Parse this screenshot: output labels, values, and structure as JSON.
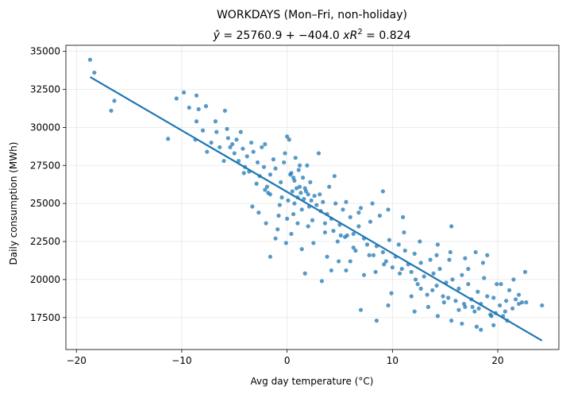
{
  "chart_data": {
    "type": "scatter",
    "title": "WORKDAYS (Mon–Fri, non-holiday)",
    "subtitle": "ŷ = 25760.9 + −404.0 x    R² = 0.824",
    "subtitle_parts": {
      "yhat": "ŷ",
      "eq_rest": " = 25760.9 + −404.0 ",
      "x_var": "x",
      "r": "R",
      "r_sup": "2",
      "r_value": " = 0.824"
    },
    "xlabel": "Avg day temperature (°C)",
    "ylabel": "Daily consumption (MWh)",
    "xlim": [
      -21,
      25.8
    ],
    "ylim": [
      15400,
      35400
    ],
    "xticks": [
      -20,
      -10,
      0,
      10,
      20
    ],
    "yticks": [
      17500,
      20000,
      22500,
      25000,
      27500,
      30000,
      32500,
      35000
    ],
    "xtick_labels": [
      "−20",
      "−10",
      "0",
      "10",
      "20"
    ],
    "ytick_labels": [
      "17500",
      "20000",
      "22500",
      "25000",
      "27500",
      "30000",
      "32500",
      "35000"
    ],
    "grid": true,
    "color": "#1f77b4",
    "fit": {
      "intercept": 25760.9,
      "slope": -404.0,
      "x_range": [
        -18.7,
        24.2
      ]
    },
    "points": [
      [
        -18.7,
        34450
      ],
      [
        -18.3,
        33600
      ],
      [
        -16.4,
        31750
      ],
      [
        -16.7,
        31100
      ],
      [
        -11.3,
        29250
      ],
      [
        -10.5,
        31900
      ],
      [
        -9.8,
        32300
      ],
      [
        -9.3,
        31300
      ],
      [
        -8.7,
        29200
      ],
      [
        -8.6,
        32100
      ],
      [
        -8.4,
        31200
      ],
      [
        -7.7,
        31400
      ],
      [
        -8.0,
        29800
      ],
      [
        -8.6,
        30400
      ],
      [
        -7.2,
        29000
      ],
      [
        -6.8,
        30400
      ],
      [
        -6.7,
        29700
      ],
      [
        -6.4,
        28700
      ],
      [
        -5.9,
        31100
      ],
      [
        -5.7,
        29900
      ],
      [
        -5.6,
        29300
      ],
      [
        -5.2,
        28900
      ],
      [
        -5.0,
        28300
      ],
      [
        -4.8,
        29200
      ],
      [
        -4.4,
        29700
      ],
      [
        -4.6,
        27800
      ],
      [
        -4.2,
        28600
      ],
      [
        -4.0,
        27400
      ],
      [
        -3.8,
        28100
      ],
      [
        -3.4,
        29000
      ],
      [
        -3.6,
        27100
      ],
      [
        -3.2,
        28400
      ],
      [
        -2.8,
        27700
      ],
      [
        -2.6,
        26800
      ],
      [
        -2.4,
        28700
      ],
      [
        -2.1,
        28900
      ],
      [
        -2.2,
        27400
      ],
      [
        -1.8,
        25700
      ],
      [
        -1.6,
        26900
      ],
      [
        -1.9,
        26100
      ],
      [
        -1.3,
        27900
      ],
      [
        -1.1,
        27300
      ],
      [
        -0.8,
        24200
      ],
      [
        -0.6,
        26400
      ],
      [
        -0.5,
        25400
      ],
      [
        -0.3,
        27700
      ],
      [
        -0.2,
        28300
      ],
      [
        0.0,
        29400
      ],
      [
        0.2,
        29200
      ],
      [
        0.3,
        26900
      ],
      [
        0.1,
        25200
      ],
      [
        0.4,
        27000
      ],
      [
        0.5,
        25800
      ],
      [
        0.6,
        26700
      ],
      [
        0.7,
        25000
      ],
      [
        0.8,
        28000
      ],
      [
        0.9,
        26000
      ],
      [
        1.0,
        25400
      ],
      [
        1.1,
        27200
      ],
      [
        1.2,
        26100
      ],
      [
        1.3,
        25700
      ],
      [
        1.4,
        24600
      ],
      [
        1.5,
        26700
      ],
      [
        1.6,
        25300
      ],
      [
        1.7,
        26000
      ],
      [
        1.8,
        25800
      ],
      [
        1.9,
        27500
      ],
      [
        2.0,
        25600
      ],
      [
        2.1,
        24800
      ],
      [
        2.2,
        26400
      ],
      [
        2.3,
        25200
      ],
      [
        2.4,
        23900
      ],
      [
        2.6,
        25500
      ],
      [
        2.8,
        24900
      ],
      [
        3.0,
        28300
      ],
      [
        3.2,
        24500
      ],
      [
        3.4,
        25100
      ],
      [
        3.6,
        23700
      ],
      [
        3.8,
        24300
      ],
      [
        4.0,
        26100
      ],
      [
        4.2,
        24000
      ],
      [
        4.4,
        23200
      ],
      [
        4.6,
        25000
      ],
      [
        4.8,
        22500
      ],
      [
        5.0,
        23600
      ],
      [
        5.3,
        24600
      ],
      [
        5.5,
        22800
      ],
      [
        5.7,
        22900
      ],
      [
        6.0,
        24100
      ],
      [
        6.3,
        23000
      ],
      [
        6.5,
        21900
      ],
      [
        6.8,
        23500
      ],
      [
        7.0,
        24700
      ],
      [
        7.3,
        22700
      ],
      [
        7.6,
        22300
      ],
      [
        7.9,
        23800
      ],
      [
        8.2,
        21600
      ],
      [
        8.5,
        22200
      ],
      [
        8.8,
        24200
      ],
      [
        9.1,
        21800
      ],
      [
        9.4,
        21200
      ],
      [
        9.7,
        22600
      ],
      [
        10.0,
        20800
      ],
      [
        10.3,
        21500
      ],
      [
        10.6,
        22300
      ],
      [
        10.9,
        20700
      ],
      [
        11.2,
        21900
      ],
      [
        11.5,
        21000
      ],
      [
        11.8,
        20500
      ],
      [
        12.1,
        21700
      ],
      [
        12.4,
        19700
      ],
      [
        12.7,
        21100
      ],
      [
        13.0,
        20200
      ],
      [
        13.3,
        19000
      ],
      [
        13.6,
        21300
      ],
      [
        13.9,
        20400
      ],
      [
        14.2,
        19600
      ],
      [
        14.5,
        20700
      ],
      [
        14.8,
        18900
      ],
      [
        15.1,
        19800
      ],
      [
        15.4,
        21300
      ],
      [
        15.7,
        20000
      ],
      [
        16.0,
        18600
      ],
      [
        16.3,
        19400
      ],
      [
        16.6,
        20300
      ],
      [
        16.9,
        18200
      ],
      [
        17.2,
        19700
      ],
      [
        17.5,
        18700
      ],
      [
        17.8,
        17900
      ],
      [
        18.1,
        19200
      ],
      [
        18.4,
        18400
      ],
      [
        18.7,
        20100
      ],
      [
        19.0,
        18900
      ],
      [
        19.3,
        17700
      ],
      [
        19.6,
        18800
      ],
      [
        19.9,
        19700
      ],
      [
        20.2,
        18300
      ],
      [
        20.5,
        17600
      ],
      [
        20.8,
        18600
      ],
      [
        21.1,
        19300
      ],
      [
        21.4,
        18100
      ],
      [
        21.7,
        18700
      ],
      [
        22.0,
        19000
      ],
      [
        22.3,
        18500
      ],
      [
        22.6,
        20500
      ],
      [
        24.2,
        18300
      ],
      [
        11.0,
        24100
      ],
      [
        9.1,
        25800
      ],
      [
        15.6,
        23500
      ],
      [
        22.7,
        18500
      ],
      [
        6.0,
        21200
      ],
      [
        5.6,
        20600
      ],
      [
        4.2,
        20600
      ],
      [
        7.3,
        20300
      ],
      [
        8.4,
        20500
      ],
      [
        9.9,
        19100
      ],
      [
        9.6,
        18300
      ],
      [
        11.8,
        18900
      ],
      [
        7.0,
        18000
      ],
      [
        8.5,
        17300
      ],
      [
        12.1,
        17900
      ],
      [
        14.3,
        17600
      ],
      [
        15.6,
        17300
      ],
      [
        16.6,
        17100
      ],
      [
        18.0,
        16900
      ],
      [
        18.4,
        16700
      ],
      [
        19.6,
        17000
      ],
      [
        20.9,
        17300
      ],
      [
        -3.3,
        24800
      ],
      [
        -2.7,
        24400
      ],
      [
        -2.0,
        23700
      ],
      [
        -0.9,
        23300
      ],
      [
        -0.1,
        22400
      ],
      [
        0.4,
        23000
      ],
      [
        -1.1,
        22700
      ],
      [
        -1.6,
        21500
      ],
      [
        1.0,
        23700
      ],
      [
        1.4,
        22000
      ],
      [
        2.5,
        22400
      ],
      [
        1.7,
        20400
      ],
      [
        3.8,
        21500
      ],
      [
        4.9,
        21200
      ],
      [
        3.3,
        19900
      ],
      [
        0.0,
        24000
      ],
      [
        0.7,
        26500
      ],
      [
        1.2,
        27500
      ],
      [
        3.1,
        25600
      ],
      [
        4.5,
        26800
      ],
      [
        5.6,
        25100
      ],
      [
        6.8,
        24400
      ],
      [
        8.1,
        25000
      ],
      [
        9.6,
        24600
      ],
      [
        11.1,
        23100
      ],
      [
        12.6,
        22500
      ],
      [
        14.2,
        21600
      ],
      [
        15.5,
        21800
      ],
      [
        17.2,
        20700
      ],
      [
        18.6,
        21100
      ],
      [
        20.3,
        19700
      ],
      [
        21.5,
        20000
      ],
      [
        13.4,
        18200
      ],
      [
        14.9,
        18500
      ],
      [
        16.3,
        18000
      ],
      [
        17.6,
        18200
      ],
      [
        19.4,
        17600
      ],
      [
        20.7,
        17900
      ],
      [
        22.0,
        18400
      ],
      [
        12.7,
        19400
      ],
      [
        16.9,
        21400
      ],
      [
        17.9,
        21800
      ],
      [
        19.0,
        21600
      ],
      [
        14.3,
        22300
      ],
      [
        -7.6,
        28400
      ],
      [
        -6.0,
        27800
      ],
      [
        -5.4,
        28700
      ],
      [
        -4.1,
        27000
      ],
      [
        -2.9,
        26300
      ],
      [
        -2.1,
        25900
      ],
      [
        -1.6,
        25600
      ],
      [
        -0.7,
        24900
      ],
      [
        0.6,
        24300
      ],
      [
        2.0,
        23500
      ],
      [
        3.6,
        23100
      ],
      [
        5.1,
        22900
      ],
      [
        6.3,
        22100
      ],
      [
        7.8,
        21600
      ],
      [
        9.2,
        21000
      ],
      [
        10.7,
        20400
      ],
      [
        12.2,
        20000
      ],
      [
        13.8,
        19300
      ],
      [
        15.3,
        18800
      ],
      [
        16.8,
        18400
      ],
      [
        18.2,
        18100
      ],
      [
        19.8,
        17800
      ]
    ]
  }
}
